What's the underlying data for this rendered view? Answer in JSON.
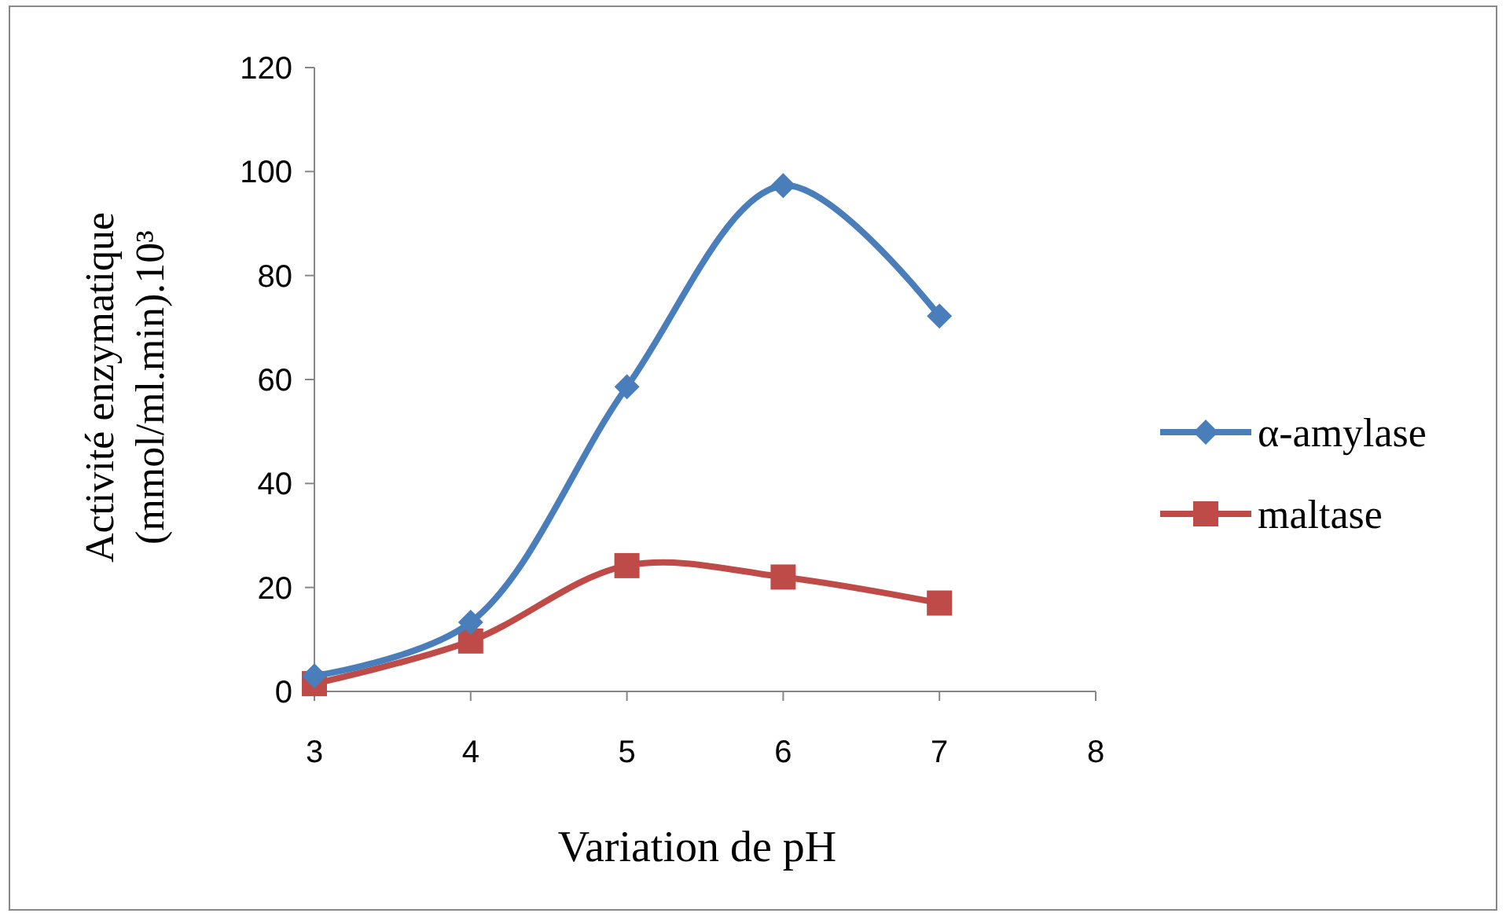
{
  "chart_data": {
    "type": "line",
    "xlabel": "Variation de pH",
    "ylabel": "Activité enzymatique\n(mmol/ml.min).10³",
    "x": [
      3,
      4,
      5,
      6,
      7
    ],
    "xlim": [
      3,
      8
    ],
    "xticks": [
      3,
      4,
      5,
      6,
      7,
      8
    ],
    "ylim": [
      0,
      120
    ],
    "yticks": [
      0,
      20,
      40,
      60,
      80,
      100,
      120
    ],
    "grid": false,
    "legend": "right",
    "series": [
      {
        "name": "α-amylase",
        "color": "#4a7ebb",
        "marker": "diamond",
        "values": [
          3,
          13.3,
          58.6,
          97.3,
          72.2
        ]
      },
      {
        "name": "maltase",
        "color": "#be4b48",
        "marker": "square",
        "values": [
          1.5,
          9.7,
          24.2,
          22,
          17
        ]
      }
    ]
  }
}
